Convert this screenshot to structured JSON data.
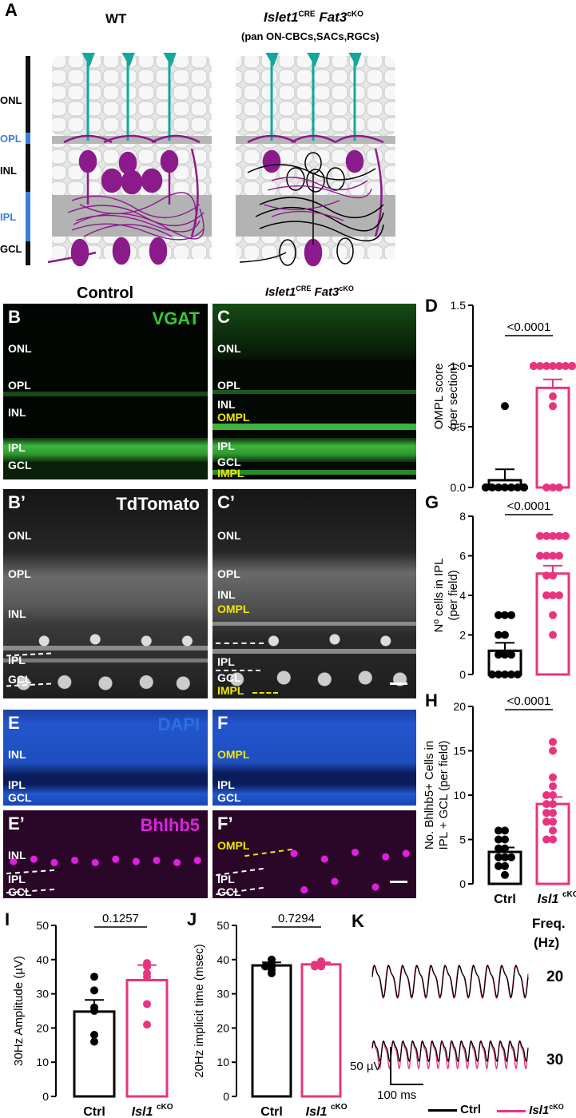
{
  "panel_a": {
    "letter": "A",
    "wt_title": "WT",
    "cko_title_main": "Islet1",
    "cko_title_sup1": "CRE",
    "cko_title_gene": "Fat3",
    "cko_title_sup2": "cKO",
    "cko_subtitle": "(pan ON-CBCs,SACs,RGCs)",
    "layers": [
      "ONL",
      "OPL",
      "INL",
      "IPL",
      "GCL"
    ]
  },
  "micro_titles": {
    "control": "Control",
    "cko_main": "Islet1",
    "cko_sup1": "CRE",
    "cko_gene": "Fat3",
    "cko_sup2": "cKO"
  },
  "panel_b": {
    "letter": "B",
    "stain": "VGAT",
    "layers": [
      "ONL",
      "OPL",
      "INL",
      "IPL",
      "GCL"
    ]
  },
  "panel_c": {
    "letter": "C",
    "layers": [
      "ONL",
      "OPL",
      "INL"
    ],
    "yellow": [
      "OMPL",
      "IMPL"
    ],
    "white_bottom": [
      "IPL",
      "GCL"
    ]
  },
  "panel_b2": {
    "letter": "B’",
    "stain": "TdTomato",
    "layers": [
      "ONL",
      "OPL",
      "INL",
      "IPL",
      "GCL"
    ]
  },
  "panel_c2": {
    "letter": "C’",
    "layers": [
      "ONL",
      "OPL",
      "INL"
    ],
    "yellow": [
      "OMPL",
      "IMPL"
    ],
    "white_bottom": [
      "IPL",
      "GCL"
    ]
  },
  "panel_e": {
    "letter": "E",
    "stain": "DAPI",
    "layers": [
      "INL",
      "IPL",
      "GCL"
    ]
  },
  "panel_f": {
    "letter": "F",
    "yellow": [
      "OMPL"
    ],
    "layers": [
      "IPL",
      "GCL"
    ]
  },
  "panel_e2": {
    "letter": "E’",
    "stain": "Bhlhb5",
    "layers": [
      "INL",
      "IPL",
      "GCL"
    ]
  },
  "panel_f2": {
    "letter": "F’",
    "yellow": [
      "OMPL"
    ],
    "layers": [
      "IPL",
      "GCL"
    ]
  },
  "colors": {
    "ctrl": "#000000",
    "cko": "#e8347f",
    "vgat": "#33cc33",
    "dapi": "#2c6ee6",
    "bhlhb5": "#e020e0",
    "layer_blue": "#3a7fd6",
    "yellow": "#f2e600"
  },
  "chart_data": [
    {
      "id": "D",
      "type": "bar",
      "letter": "D",
      "ylabel": "OMPL score",
      "ylabel2": "(per section)",
      "ylim": [
        0,
        1.5
      ],
      "yticks": [
        "0.0",
        "0.5",
        "1.0",
        "1.5"
      ],
      "pvalue": "<0.0001",
      "categories": [
        "Ctrl",
        "Isl1cKO"
      ],
      "means": [
        0.06,
        0.82
      ],
      "sem": [
        0.09,
        0.07
      ],
      "points": [
        [
          0,
          0,
          0,
          0,
          0,
          0,
          0,
          0,
          0,
          0,
          0,
          0,
          0.67
        ],
        [
          1,
          1,
          1,
          1,
          1,
          1,
          1,
          1,
          1,
          1,
          1,
          0.75,
          0.67,
          0,
          0,
          0
        ]
      ]
    },
    {
      "id": "G",
      "type": "bar",
      "letter": "G",
      "ylabel": "Nº cells in IPL",
      "ylabel2": "(per field)",
      "ylim": [
        0,
        8
      ],
      "yticks": [
        "0",
        "2",
        "4",
        "6",
        "8"
      ],
      "pvalue": "<0.0001",
      "categories": [
        "Ctrl",
        "Isl1cKO"
      ],
      "means": [
        1.2,
        5.1
      ],
      "sem": [
        0.4,
        0.4
      ],
      "points": [
        [
          3,
          3,
          3,
          2,
          2,
          1,
          1,
          1,
          0,
          0,
          0,
          0,
          0
        ],
        [
          7,
          7,
          7,
          7,
          7,
          6,
          6,
          6,
          6,
          5,
          5,
          4,
          4,
          4,
          3,
          2
        ]
      ]
    },
    {
      "id": "H",
      "type": "bar",
      "letter": "H",
      "ylabel": "No. Bhlhb5+ Cells in",
      "ylabel2": "IPL + GCL (per field)",
      "ylim": [
        0,
        20
      ],
      "yticks": [
        "0",
        "5",
        "10",
        "15",
        "20"
      ],
      "pvalue": "<0.0001",
      "categories": [
        "Ctrl",
        "Isl1cKO"
      ],
      "means": [
        3.6,
        9.0
      ],
      "sem": [
        0.5,
        0.8
      ],
      "points": [
        [
          6,
          6,
          5,
          5,
          4,
          4,
          3,
          3,
          3,
          2,
          2,
          1
        ],
        [
          16,
          15,
          12,
          11,
          10,
          10,
          9,
          9,
          8,
          8,
          7,
          7,
          6,
          5,
          5
        ]
      ]
    },
    {
      "id": "I",
      "type": "bar",
      "letter": "I",
      "ylabel": "30Hz Amplitude (µV)",
      "ylabel2": "",
      "ylim": [
        0,
        50
      ],
      "yticks": [
        "0",
        "10",
        "20",
        "30",
        "40",
        "50"
      ],
      "pvalue": "0.1257",
      "categories": [
        "Ctrl",
        "Isl1cKO"
      ],
      "means": [
        24.8,
        34.0
      ],
      "sem": [
        3.4,
        4.4
      ],
      "points": [
        [
          35,
          31,
          26,
          25,
          18,
          16
        ],
        [
          39,
          38,
          36,
          35,
          27,
          21
        ]
      ]
    },
    {
      "id": "J",
      "type": "bar",
      "letter": "J",
      "ylabel": "20Hz implicit time (msec)",
      "ylabel2": "",
      "ylim": [
        0,
        50
      ],
      "yticks": [
        "0",
        "10",
        "20",
        "30",
        "40",
        "50"
      ],
      "pvalue": "0.7294",
      "categories": [
        "Ctrl",
        "Isl1cKO"
      ],
      "means": [
        38.3,
        38.6
      ],
      "sem": [
        0.9,
        0.6
      ],
      "points": [
        [
          40,
          39,
          38,
          38,
          37,
          36
        ],
        [
          39.5,
          39,
          38.5,
          38.5,
          38,
          38
        ]
      ]
    },
    {
      "id": "K",
      "type": "line",
      "letter": "K",
      "freq_title": "Freq.",
      "freq_unit": "(Hz)",
      "rows": [
        "20",
        "30"
      ],
      "scalebar_v": "50 µV",
      "scalebar_h": "100 ms",
      "legend": [
        "Ctrl",
        "Isl1cKO"
      ]
    }
  ],
  "cat_labels": {
    "ctrl": "Ctrl",
    "cko_main": "Isl1",
    "cko_sup": "cKO"
  }
}
